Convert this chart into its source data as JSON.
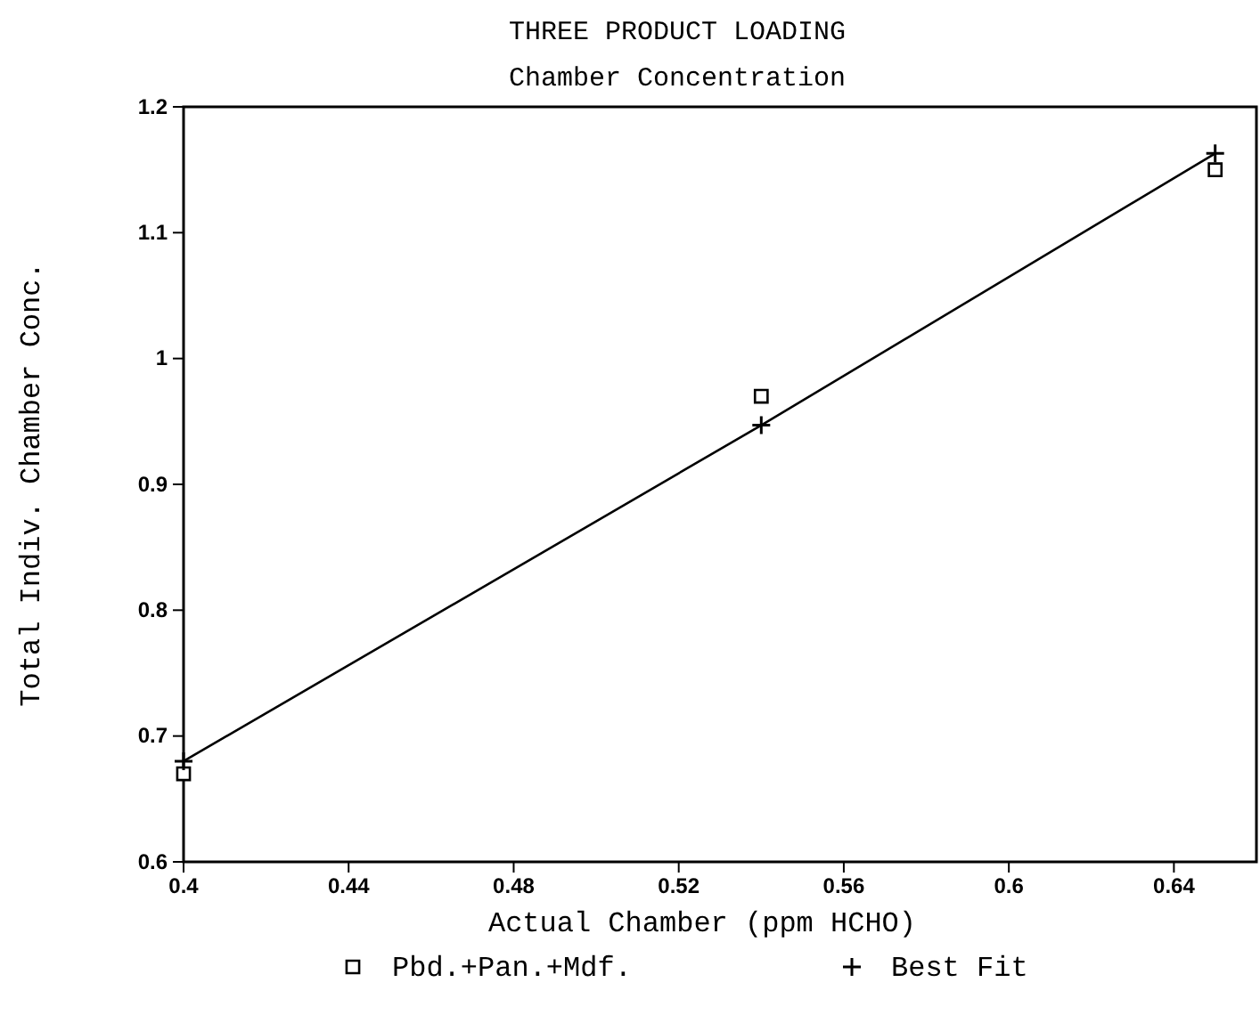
{
  "chart_data": {
    "type": "scatter",
    "title": "THREE PRODUCT LOADING",
    "subtitle": "Chamber Concentration",
    "xlabel": "Actual Chamber (ppm HCHO)",
    "ylabel": "Total Indiv. Chamber Conc.",
    "x": [
      0.4,
      0.54,
      0.65
    ],
    "series": [
      {
        "name": "Pbd.+Pan.+Mdf.",
        "marker": "square",
        "color": "#000000",
        "values": [
          0.67,
          0.97,
          1.15
        ]
      },
      {
        "name": "Best Fit",
        "type": "line",
        "marker": "cross",
        "color": "#000000",
        "values": [
          0.68,
          0.947,
          1.163
        ]
      }
    ],
    "xlim": [
      0.4,
      0.66
    ],
    "xticks": [
      0.4,
      0.44,
      0.48,
      0.52,
      0.56,
      0.6,
      0.64
    ],
    "ylim": [
      0.6,
      1.2
    ],
    "yticks": [
      0.6,
      0.7,
      0.8,
      0.9,
      1,
      1.1,
      1.2
    ],
    "grid": false,
    "legend": "bottom"
  }
}
